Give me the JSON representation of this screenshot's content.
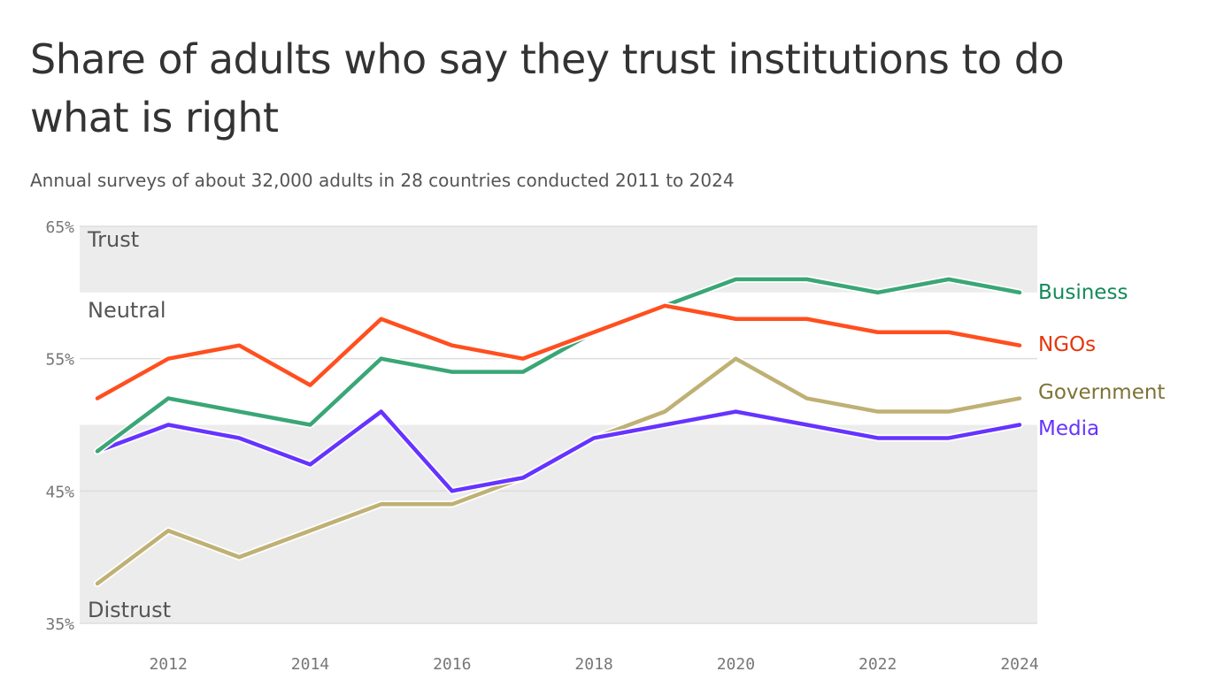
{
  "chart_data": {
    "type": "line",
    "title": "Share of adults who say they trust institutions to do what is right",
    "subtitle": "Annual surveys of about 32,000 adults in 28 countries conducted 2011 to 2024",
    "x": [
      2011,
      2012,
      2013,
      2014,
      2015,
      2016,
      2017,
      2018,
      2019,
      2020,
      2021,
      2022,
      2023,
      2024
    ],
    "xlim": [
      2011,
      2024
    ],
    "ylim": [
      35,
      65
    ],
    "xticks": [
      "2012",
      "2014",
      "2016",
      "2018",
      "2020",
      "2022",
      "2024"
    ],
    "yticks": [
      {
        "value": 65,
        "label": "65%"
      },
      {
        "value": 55,
        "label": "55%"
      },
      {
        "value": 45,
        "label": "45%"
      },
      {
        "value": 35,
        "label": "35%"
      }
    ],
    "bands": [
      {
        "label": "Trust",
        "from": 60,
        "to": 65,
        "color": "#ececec"
      },
      {
        "label": "Neutral",
        "from": 50,
        "to": 60,
        "color": "#ffffff"
      },
      {
        "label": "Distrust",
        "from": 35,
        "to": 50,
        "color": "#ececec"
      }
    ],
    "series": [
      {
        "name": "Government",
        "color": "#bfb074",
        "label_color": "#7d7335",
        "values": [
          38,
          42,
          40,
          42,
          44,
          44,
          46,
          49,
          51,
          55,
          52,
          51,
          51,
          52
        ]
      },
      {
        "name": "Media",
        "color": "#6633ff",
        "label_color": "#6633ff",
        "values": [
          48,
          50,
          49,
          47,
          51,
          45,
          46,
          49,
          50,
          51,
          50,
          49,
          49,
          50
        ]
      },
      {
        "name": "Business",
        "color": "#3aa676",
        "label_color": "#138a5a",
        "values": [
          48,
          52,
          51,
          50,
          55,
          54,
          54,
          57,
          59,
          61,
          61,
          60,
          61,
          60
        ]
      },
      {
        "name": "NGOs",
        "color": "#ff4f1f",
        "label_color": "#e6350a",
        "values": [
          52,
          55,
          56,
          53,
          58,
          56,
          55,
          57,
          59,
          58,
          58,
          57,
          57,
          56
        ]
      }
    ],
    "grid": true,
    "legend": "direct labels at right end"
  }
}
